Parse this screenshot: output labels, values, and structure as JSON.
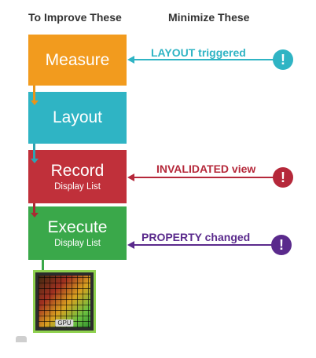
{
  "headers": {
    "left": "To Improve These",
    "right": "Minimize These"
  },
  "stages": [
    {
      "name": "Measure",
      "sub": ""
    },
    {
      "name": "Layout",
      "sub": ""
    },
    {
      "name": "Record",
      "sub": "Display List"
    },
    {
      "name": "Execute",
      "sub": "Display List"
    }
  ],
  "notes": [
    {
      "text": "LAYOUT triggered",
      "color": "#2fb4c4",
      "icon": "exclamation-icon"
    },
    {
      "text": "INVALIDATED view",
      "color": "#b5283a",
      "icon": "exclamation-icon"
    },
    {
      "text": "PROPERTY changed",
      "color": "#5a2a8c",
      "icon": "exclamation-icon"
    }
  ],
  "gpu": {
    "label": "GPU",
    "icon": "gpu-chip-icon"
  }
}
